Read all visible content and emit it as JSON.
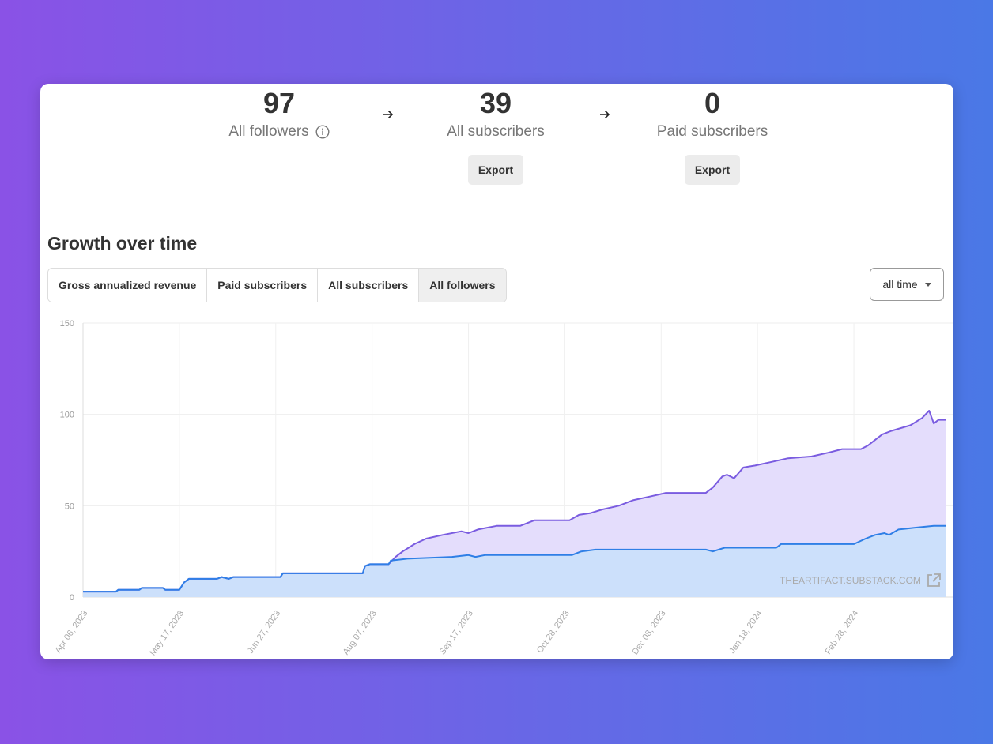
{
  "stats": [
    {
      "value": "97",
      "label": "All followers",
      "has_info": true
    },
    {
      "value": "39",
      "label": "All subscribers",
      "export_label": "Export"
    },
    {
      "value": "0",
      "label": "Paid subscribers",
      "export_label": "Export"
    }
  ],
  "section_title": "Growth over time",
  "tabs": [
    "Gross annualized revenue",
    "Paid subscribers",
    "All subscribers",
    "All followers"
  ],
  "active_tab": "All followers",
  "range_select": {
    "value": "all time"
  },
  "watermark": "THEARTIFACT.SUBSTACK.COM",
  "colors": {
    "followers_line": "#7a5ce0",
    "followers_fill": "#e4ddfc",
    "subscribers_line": "#2f7fe6",
    "subscribers_fill": "#cce0fb"
  },
  "chart_data": {
    "type": "area",
    "x_ticks": [
      "Apr 06, 2023",
      "May 17, 2023",
      "Jun 27, 2023",
      "Aug 07, 2023",
      "Sep 17, 2023",
      "Oct 28, 2023",
      "Dec 08, 2023",
      "Jan 18, 2024",
      "Feb 28, 2024"
    ],
    "y_ticks": [
      0,
      50,
      100,
      150
    ],
    "ylim": [
      0,
      150
    ],
    "xlim": [
      "2023-04-06",
      "2024-04-07"
    ],
    "grid": true,
    "series": [
      {
        "name": "All followers",
        "points": [
          [
            "2023-04-06",
            3
          ],
          [
            "2023-04-20",
            3
          ],
          [
            "2023-04-21",
            4
          ],
          [
            "2023-04-30",
            4
          ],
          [
            "2023-05-01",
            5
          ],
          [
            "2023-05-10",
            5
          ],
          [
            "2023-05-11",
            4
          ],
          [
            "2023-05-17",
            4
          ],
          [
            "2023-05-19",
            8
          ],
          [
            "2023-05-21",
            10
          ],
          [
            "2023-06-02",
            10
          ],
          [
            "2023-06-04",
            11
          ],
          [
            "2023-06-07",
            10
          ],
          [
            "2023-06-09",
            11
          ],
          [
            "2023-06-29",
            11
          ],
          [
            "2023-06-30",
            13
          ],
          [
            "2023-08-03",
            13
          ],
          [
            "2023-08-04",
            17
          ],
          [
            "2023-08-06",
            18
          ],
          [
            "2023-08-14",
            18
          ],
          [
            "2023-08-17",
            22
          ],
          [
            "2023-08-20",
            25
          ],
          [
            "2023-08-25",
            29
          ],
          [
            "2023-08-30",
            32
          ],
          [
            "2023-09-06",
            34
          ],
          [
            "2023-09-14",
            36
          ],
          [
            "2023-09-17",
            35
          ],
          [
            "2023-09-21",
            37
          ],
          [
            "2023-09-29",
            39
          ],
          [
            "2023-10-09",
            39
          ],
          [
            "2023-10-15",
            42
          ],
          [
            "2023-10-30",
            42
          ],
          [
            "2023-11-03",
            45
          ],
          [
            "2023-11-08",
            46
          ],
          [
            "2023-11-13",
            48
          ],
          [
            "2023-11-20",
            50
          ],
          [
            "2023-11-26",
            53
          ],
          [
            "2023-12-03",
            55
          ],
          [
            "2023-12-10",
            57
          ],
          [
            "2023-12-27",
            57
          ],
          [
            "2023-12-30",
            60
          ],
          [
            "2024-01-03",
            66
          ],
          [
            "2024-01-05",
            67
          ],
          [
            "2024-01-08",
            65
          ],
          [
            "2024-01-12",
            71
          ],
          [
            "2024-01-17",
            72
          ],
          [
            "2024-01-24",
            74
          ],
          [
            "2024-01-31",
            76
          ],
          [
            "2024-02-10",
            77
          ],
          [
            "2024-02-17",
            79
          ],
          [
            "2024-02-23",
            81
          ],
          [
            "2024-03-02",
            81
          ],
          [
            "2024-03-05",
            83
          ],
          [
            "2024-03-08",
            86
          ],
          [
            "2024-03-11",
            89
          ],
          [
            "2024-03-15",
            91
          ],
          [
            "2024-03-23",
            94
          ],
          [
            "2024-03-28",
            98
          ],
          [
            "2024-03-31",
            102
          ],
          [
            "2024-04-02",
            95
          ],
          [
            "2024-04-04",
            97
          ],
          [
            "2024-04-07",
            97
          ]
        ]
      },
      {
        "name": "All subscribers",
        "points": [
          [
            "2023-04-06",
            3
          ],
          [
            "2023-04-20",
            3
          ],
          [
            "2023-04-21",
            4
          ],
          [
            "2023-04-30",
            4
          ],
          [
            "2023-05-01",
            5
          ],
          [
            "2023-05-10",
            5
          ],
          [
            "2023-05-11",
            4
          ],
          [
            "2023-05-17",
            4
          ],
          [
            "2023-05-19",
            8
          ],
          [
            "2023-05-21",
            10
          ],
          [
            "2023-06-02",
            10
          ],
          [
            "2023-06-04",
            11
          ],
          [
            "2023-06-07",
            10
          ],
          [
            "2023-06-09",
            11
          ],
          [
            "2023-06-29",
            11
          ],
          [
            "2023-06-30",
            13
          ],
          [
            "2023-08-03",
            13
          ],
          [
            "2023-08-04",
            17
          ],
          [
            "2023-08-06",
            18
          ],
          [
            "2023-08-14",
            18
          ],
          [
            "2023-08-15",
            20
          ],
          [
            "2023-08-22",
            21
          ],
          [
            "2023-09-10",
            22
          ],
          [
            "2023-09-17",
            23
          ],
          [
            "2023-09-20",
            22
          ],
          [
            "2023-09-24",
            23
          ],
          [
            "2023-10-31",
            23
          ],
          [
            "2023-11-04",
            25
          ],
          [
            "2023-11-10",
            26
          ],
          [
            "2023-12-27",
            26
          ],
          [
            "2023-12-30",
            25
          ],
          [
            "2024-01-04",
            27
          ],
          [
            "2024-01-26",
            27
          ],
          [
            "2024-01-28",
            29
          ],
          [
            "2024-02-28",
            29
          ],
          [
            "2024-03-04",
            32
          ],
          [
            "2024-03-08",
            34
          ],
          [
            "2024-03-12",
            35
          ],
          [
            "2024-03-14",
            34
          ],
          [
            "2024-03-18",
            37
          ],
          [
            "2024-03-25",
            38
          ],
          [
            "2024-04-02",
            39
          ],
          [
            "2024-04-07",
            39
          ]
        ]
      }
    ]
  }
}
